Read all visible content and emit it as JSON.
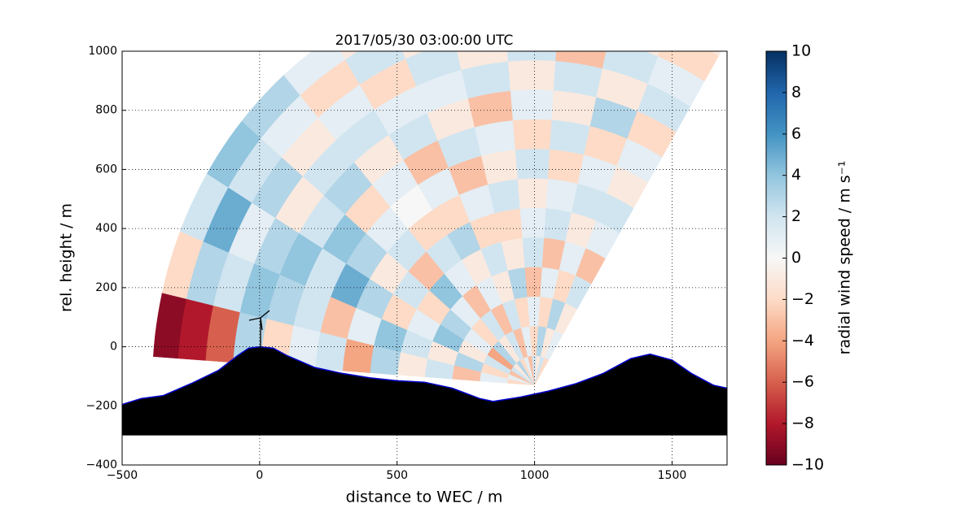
{
  "chart_data": {
    "type": "rhi",
    "title": "2017/05/30 03:00:00 UTC",
    "x_label": "distance to WEC / m",
    "y_label": "rel. height / m",
    "xlim": [
      -500,
      1700
    ],
    "ylim": [
      -400,
      1000
    ],
    "xticks": [
      {
        "value": -500,
        "label": "−500"
      },
      0,
      500,
      1000,
      1500
    ],
    "yticks": [
      {
        "value": -400,
        "label": "−400"
      },
      {
        "value": -200,
        "label": "−200"
      },
      0,
      200,
      400,
      600,
      800,
      1000
    ],
    "grid": true,
    "scan": {
      "origin": [
        1000,
        -130
      ],
      "elevation_edges": [
        176,
        167,
        158,
        149,
        140,
        131,
        122,
        113,
        104,
        95,
        86,
        77,
        68,
        59
      ],
      "range_edges": [
        0,
        100,
        200,
        300,
        400,
        500,
        600,
        700,
        800,
        900,
        1000,
        1100,
        1200,
        1300,
        1390
      ],
      "values": [
        [
          -2,
          1,
          -3,
          2,
          -1,
          3,
          -4,
          2,
          1,
          -2,
          3,
          -6,
          -8,
          -9
        ],
        [
          1,
          -2,
          3,
          -1,
          2,
          4,
          1,
          -3,
          2,
          3,
          4,
          2,
          3,
          -2
        ],
        [
          -3,
          2,
          -1,
          4,
          1,
          -2,
          3,
          5,
          2,
          4,
          3,
          1,
          5,
          2
        ],
        [
          2,
          -4,
          1,
          3,
          -2,
          2,
          -1,
          3,
          4,
          2,
          -1,
          3,
          2,
          4
        ],
        [
          -1,
          3,
          -2,
          1,
          4,
          -3,
          2,
          1,
          -2,
          3,
          2,
          -1,
          1,
          3
        ],
        [
          3,
          -1,
          2,
          -3,
          1,
          2,
          -2,
          0,
          1,
          -1,
          2,
          1,
          -2,
          1
        ],
        [
          -2,
          2,
          -3,
          1,
          -1,
          3,
          -2,
          1,
          -3,
          2,
          1,
          -2,
          2,
          -1
        ],
        [
          1,
          -3,
          2,
          -1,
          2,
          -2,
          1,
          -3,
          2,
          -1,
          1,
          2,
          -1,
          1
        ],
        [
          -3,
          1,
          -2,
          3,
          -1,
          -2,
          2,
          -1,
          1,
          -3,
          2,
          -1,
          1,
          -2
        ],
        [
          2,
          -2,
          1,
          -3,
          2,
          1,
          -1,
          2,
          -2,
          1,
          -1,
          2,
          -2,
          1
        ],
        [
          -1,
          3,
          -2,
          1,
          -3,
          2,
          1,
          -2,
          2,
          -1,
          2,
          -3,
          1,
          2
        ],
        [
          2,
          -1,
          3,
          -2,
          1,
          -1,
          2,
          1,
          -2,
          3,
          -1,
          2,
          -1,
          1
        ],
        [
          -2,
          1,
          -1,
          2,
          -3,
          1,
          2,
          -1,
          1,
          -2,
          2,
          1,
          -2,
          -1
        ]
      ]
    },
    "terrain": {
      "color": "#000000",
      "outline": "#0000cc",
      "base": -300,
      "x": [
        -500,
        -430,
        -350,
        -250,
        -150,
        -80,
        -40,
        0,
        50,
        100,
        200,
        300,
        400,
        500,
        600,
        700,
        800,
        850,
        950,
        1050,
        1150,
        1250,
        1350,
        1420,
        1500,
        1570,
        1650,
        1700
      ],
      "y": [
        -195,
        -175,
        -165,
        -125,
        -80,
        -30,
        -5,
        0,
        -5,
        -30,
        -70,
        -90,
        -105,
        -115,
        -120,
        -140,
        -175,
        -185,
        -170,
        -150,
        -125,
        -90,
        -40,
        -25,
        -45,
        -90,
        -130,
        -140
      ]
    },
    "colorbar": {
      "label": "radial wind speed / m s⁻¹",
      "lim": [
        -10,
        10
      ],
      "ticks": [
        {
          "value": -10,
          "label": "−10"
        },
        {
          "value": -8,
          "label": "−8"
        },
        {
          "value": -6,
          "label": "−6"
        },
        {
          "value": -4,
          "label": "−4"
        },
        {
          "value": -2,
          "label": "−2"
        },
        0,
        2,
        4,
        6,
        8,
        10
      ],
      "colormap": [
        "#67001f",
        "#b2182b",
        "#d6604d",
        "#f4a582",
        "#fddbc7",
        "#f7f7f7",
        "#d1e5f0",
        "#92c5de",
        "#4393c3",
        "#2166ac",
        "#053061"
      ]
    }
  }
}
